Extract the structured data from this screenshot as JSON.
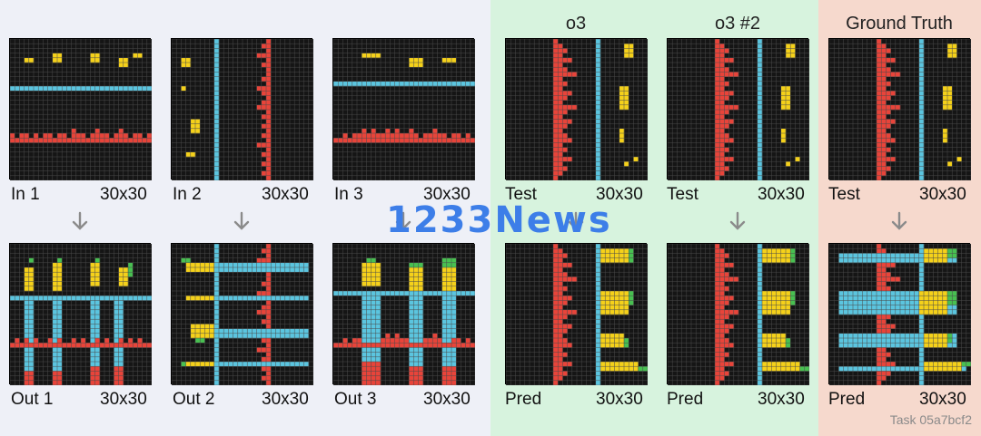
{
  "columns": [
    {
      "id": "o3",
      "label": "o3"
    },
    {
      "id": "o3_2",
      "label": "o3 #2"
    },
    {
      "id": "gt",
      "label": "Ground Truth"
    }
  ],
  "colors": {
    "bg": "#151515",
    "grid": "#4a4a4a",
    "red": "#e8443a",
    "yellow": "#f5d11a",
    "cyan": "#5bc5df",
    "green": "#48c051"
  },
  "panels": [
    {
      "id": "in1",
      "label": "In 1",
      "size": "30x30"
    },
    {
      "id": "in2",
      "label": "In 2",
      "size": "30x30"
    },
    {
      "id": "in3",
      "label": "In 3",
      "size": "30x30"
    },
    {
      "id": "test_o3",
      "label": "Test",
      "size": "30x30"
    },
    {
      "id": "test_o3_2",
      "label": "Test",
      "size": "30x30"
    },
    {
      "id": "test_gt",
      "label": "Test",
      "size": "30x30"
    },
    {
      "id": "out1",
      "label": "Out 1",
      "size": "30x30"
    },
    {
      "id": "out2",
      "label": "Out 2",
      "size": "30x30"
    },
    {
      "id": "out3",
      "label": "Out 3",
      "size": "30x30"
    },
    {
      "id": "pred_o3",
      "label": "Pred",
      "size": "30x30"
    },
    {
      "id": "pred_o3_2",
      "label": "Pred",
      "size": "30x30"
    },
    {
      "id": "pred_gt",
      "label": "Pred",
      "size": "30x30"
    }
  ],
  "watermark": "1233News",
  "task_label": "Task 05a7bcf2"
}
